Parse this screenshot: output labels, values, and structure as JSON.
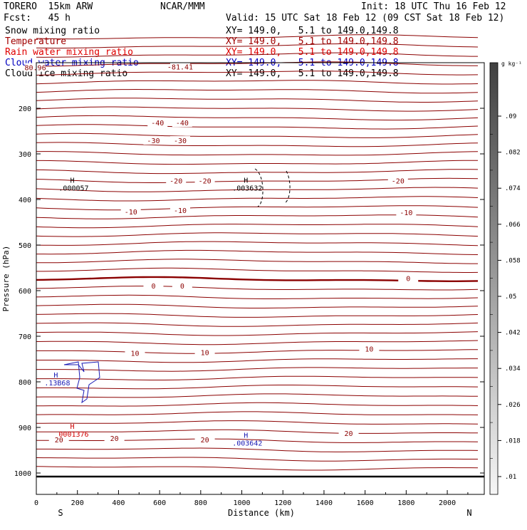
{
  "header": {
    "model": "TORERO  15km ARW",
    "org": "NCAR/MMM",
    "init": "Init: 18 UTC Thu 16 Feb 12",
    "fcst": "Fcst:   45 h",
    "valid": "Valid: 15 UTC Sat 18 Feb 12 (09 CST Sat 18 Feb 12)"
  },
  "fields": [
    {
      "name": "Snow mixing ratio",
      "color": "#000000",
      "xy": "XY= 149.0,   5.1 to 149.0,149.8"
    },
    {
      "name": "Temperature",
      "color": "#a00000",
      "xy": "XY= 149.0,   5.1 to 149.0,149.8"
    },
    {
      "name": "Rain water mixing ratio",
      "color": "#e00000",
      "xy": "XY= 149.0,   5.1 to 149.0,149.8"
    },
    {
      "name": "Cloud water mixing ratio",
      "color": "#0000c0",
      "xy": "XY= 149.0,   5.1 to 149.0,149.8"
    },
    {
      "name": "Cloud ice mixing ratio",
      "color": "#000000",
      "xy": "XY= 149.0,   5.1 to 149.0,149.8"
    }
  ],
  "colors": {
    "temperature": "#8b0000",
    "cloud_water": "#1a1ab4",
    "rain": "#d00000",
    "text": "#000000"
  },
  "chart_data": {
    "type": "contour cross-section",
    "xlabel": "Distance (km)",
    "ylabel": "Pressure (hPa)",
    "x_ticks": [
      0,
      200,
      400,
      600,
      800,
      1000,
      1200,
      1400,
      1600,
      1800,
      2000
    ],
    "xlim": [
      0,
      2180
    ],
    "y_ticks": [
      200,
      300,
      400,
      500,
      600,
      700,
      800,
      900,
      1000
    ],
    "ylim": [
      100,
      1050
    ],
    "x_end_labels": {
      "left": "S",
      "right": "N"
    },
    "colorbar_unit": "g kg⁻¹",
    "colorbar_ticks": [
      ".09",
      ".082",
      ".074",
      ".066",
      ".058",
      ".05",
      ".042",
      ".034",
      ".026",
      ".018",
      ".01"
    ],
    "temperature_contour_labels": [
      {
        "text": "-81.41",
        "x": 700,
        "p": 110
      },
      {
        "text": "80.96",
        "x": -5,
        "p": 112
      },
      {
        "text": "-40",
        "x": 590,
        "p": 233
      },
      {
        "text": "-40",
        "x": 710,
        "p": 233
      },
      {
        "text": "-30",
        "x": 570,
        "p": 272
      },
      {
        "text": "-30",
        "x": 700,
        "p": 272
      },
      {
        "text": "-20",
        "x": 680,
        "p": 360
      },
      {
        "text": "-20",
        "x": 820,
        "p": 360
      },
      {
        "text": "-20",
        "x": 1760,
        "p": 360
      },
      {
        "text": "-10",
        "x": 460,
        "p": 428
      },
      {
        "text": "-10",
        "x": 700,
        "p": 425
      },
      {
        "text": "-10",
        "x": 1800,
        "p": 430
      },
      {
        "text": "0",
        "x": 570,
        "p": 591
      },
      {
        "text": "0",
        "x": 710,
        "p": 591
      },
      {
        "text": "0",
        "x": 1810,
        "p": 574
      },
      {
        "text": "10",
        "x": 480,
        "p": 738
      },
      {
        "text": "10",
        "x": 820,
        "p": 737
      },
      {
        "text": "10",
        "x": 1620,
        "p": 729
      },
      {
        "text": "20",
        "x": 110,
        "p": 928
      },
      {
        "text": "20",
        "x": 380,
        "p": 925
      },
      {
        "text": "20",
        "x": 820,
        "p": 928
      },
      {
        "text": "20",
        "x": 1520,
        "p": 914
      }
    ],
    "max_markers": [
      {
        "label": "H",
        "value": ".000057",
        "x": 175,
        "p": 363,
        "color": "#000000"
      },
      {
        "label": "H",
        "value": ".003632",
        "x": 1020,
        "p": 363,
        "color": "#000000"
      },
      {
        "label": "H",
        "value": ".13B68",
        "x": 95,
        "p": 791,
        "color": "#1a1ab4"
      },
      {
        "label": "H",
        "value": "0001376",
        "x": 175,
        "p": 903,
        "color": "#d00000"
      },
      {
        "label": "H",
        "value": ".003642",
        "x": 1020,
        "p": 923,
        "color": "#1a1ab4"
      }
    ]
  }
}
